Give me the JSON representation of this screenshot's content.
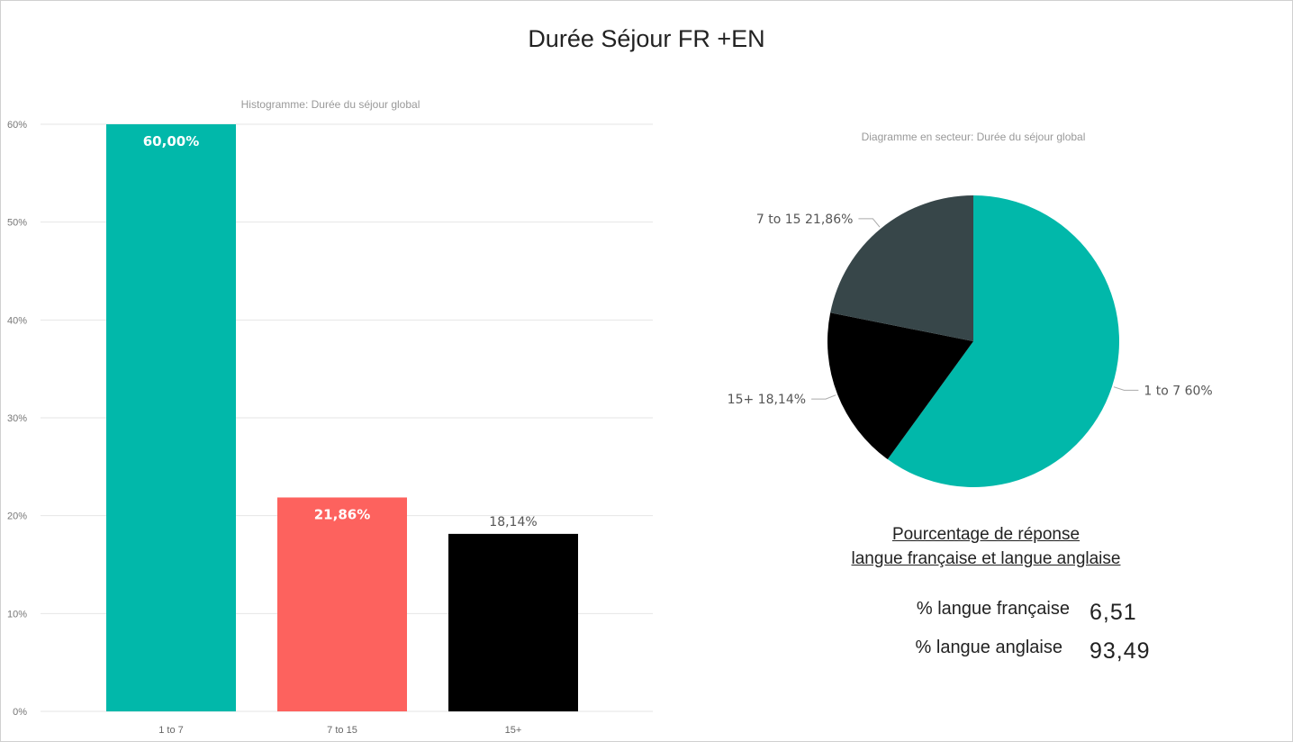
{
  "page": {
    "title": "Durée Séjour FR +EN"
  },
  "chart_data": [
    {
      "type": "bar",
      "title": "Histogramme: Durée du séjour global",
      "xlabel": "",
      "ylabel": "",
      "categories": [
        "1 to 7",
        "7 to 15",
        "15+"
      ],
      "values": [
        60.0,
        21.86,
        18.14
      ],
      "data_labels": [
        "60,00%",
        "21,86%",
        "18,14%"
      ],
      "colors": [
        "#01B8AA",
        "#FD625E",
        "#000000"
      ],
      "ylim": [
        0,
        60
      ],
      "yticks": [
        "0%",
        "10%",
        "20%",
        "30%",
        "40%",
        "50%",
        "60%"
      ],
      "grid": true
    },
    {
      "type": "pie",
      "title": "Diagramme en secteur: Durée du séjour global",
      "categories": [
        "1 to 7",
        "15+",
        "7 to 15"
      ],
      "values": [
        60.0,
        18.14,
        21.86
      ],
      "data_labels": [
        "1 to 7 60%",
        "15+ 18,14%",
        "7 to 15 21,86%"
      ],
      "colors": [
        "#01B8AA",
        "#000000",
        "#374649"
      ]
    }
  ],
  "summary": {
    "title_line1": "Pourcentage de réponse ",
    "title_line2": "langue française et langue anglaise",
    "rows": [
      {
        "label": "% langue française",
        "value": "6,51"
      },
      {
        "label": "% langue anglaise",
        "value": "93,49"
      }
    ]
  }
}
